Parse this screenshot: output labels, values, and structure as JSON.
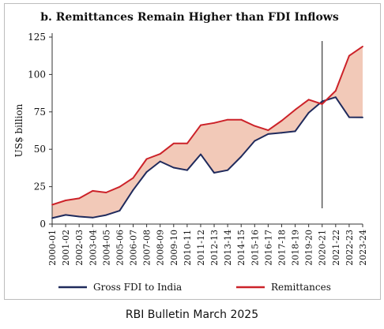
{
  "chart_data": {
    "type": "area",
    "title": "b. Remittances Remain Higher than FDI Inflows",
    "xlabel": "",
    "ylabel": "US$ billion",
    "ylim": [
      0,
      125
    ],
    "yticks": [
      0,
      25,
      50,
      75,
      100,
      125
    ],
    "grid": false,
    "legend_position": "bottom",
    "categories": [
      "2000-01",
      "2001-02",
      "2002-03",
      "2003-04",
      "2004-05",
      "2005-06",
      "2006-07",
      "2007-08",
      "2008-09",
      "2009-10",
      "2010-11",
      "2011-12",
      "2012-13",
      "2013-14",
      "2014-15",
      "2015-16",
      "2016-17",
      "2017-18",
      "2018-19",
      "2019-20",
      "2020-21",
      "2021-22",
      "2022-23",
      "2023-24"
    ],
    "series": [
      {
        "name": "Gross FDI to India",
        "color": "#1f2a5c",
        "values": [
          4.0,
          6.1,
          5.0,
          4.3,
          6.0,
          8.9,
          22.8,
          34.8,
          41.9,
          37.7,
          36.0,
          46.6,
          34.3,
          36.0,
          45.1,
          55.6,
          60.2,
          61.0,
          62.0,
          74.4,
          82.0,
          84.8,
          71.4,
          71.3
        ]
      },
      {
        "name": "Remittances",
        "color": "#cc2229",
        "values": [
          12.9,
          15.8,
          17.2,
          22.2,
          21.1,
          24.9,
          30.8,
          43.5,
          46.9,
          53.9,
          53.9,
          66.1,
          67.6,
          69.8,
          69.8,
          65.6,
          62.7,
          69.1,
          76.4,
          83.2,
          80.2,
          89.1,
          112.5,
          118.7
        ]
      }
    ],
    "shading_color": "#f2c9b8",
    "vertical_marker_category": "2020-21"
  },
  "footer": {
    "source": "RBI Bulletin March 2025"
  }
}
